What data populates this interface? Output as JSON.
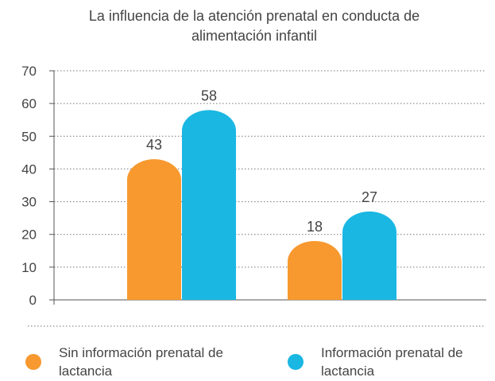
{
  "chart_data": {
    "type": "bar",
    "title": "La influencia de la atención prenatal en conducta de alimentación infantil",
    "categories": [
      null,
      null
    ],
    "series": [
      {
        "name": "Sin información prenatal de lactancia",
        "color": "#f7992f",
        "values": [
          43,
          18
        ]
      },
      {
        "name": "Información prenatal de lactancia",
        "color": "#1ab7e3",
        "values": [
          58,
          27
        ]
      }
    ],
    "ylim": [
      0,
      70
    ],
    "yticks": [
      0,
      10,
      20,
      30,
      40,
      50,
      60,
      70
    ],
    "grid": true,
    "legend": "bottom"
  }
}
